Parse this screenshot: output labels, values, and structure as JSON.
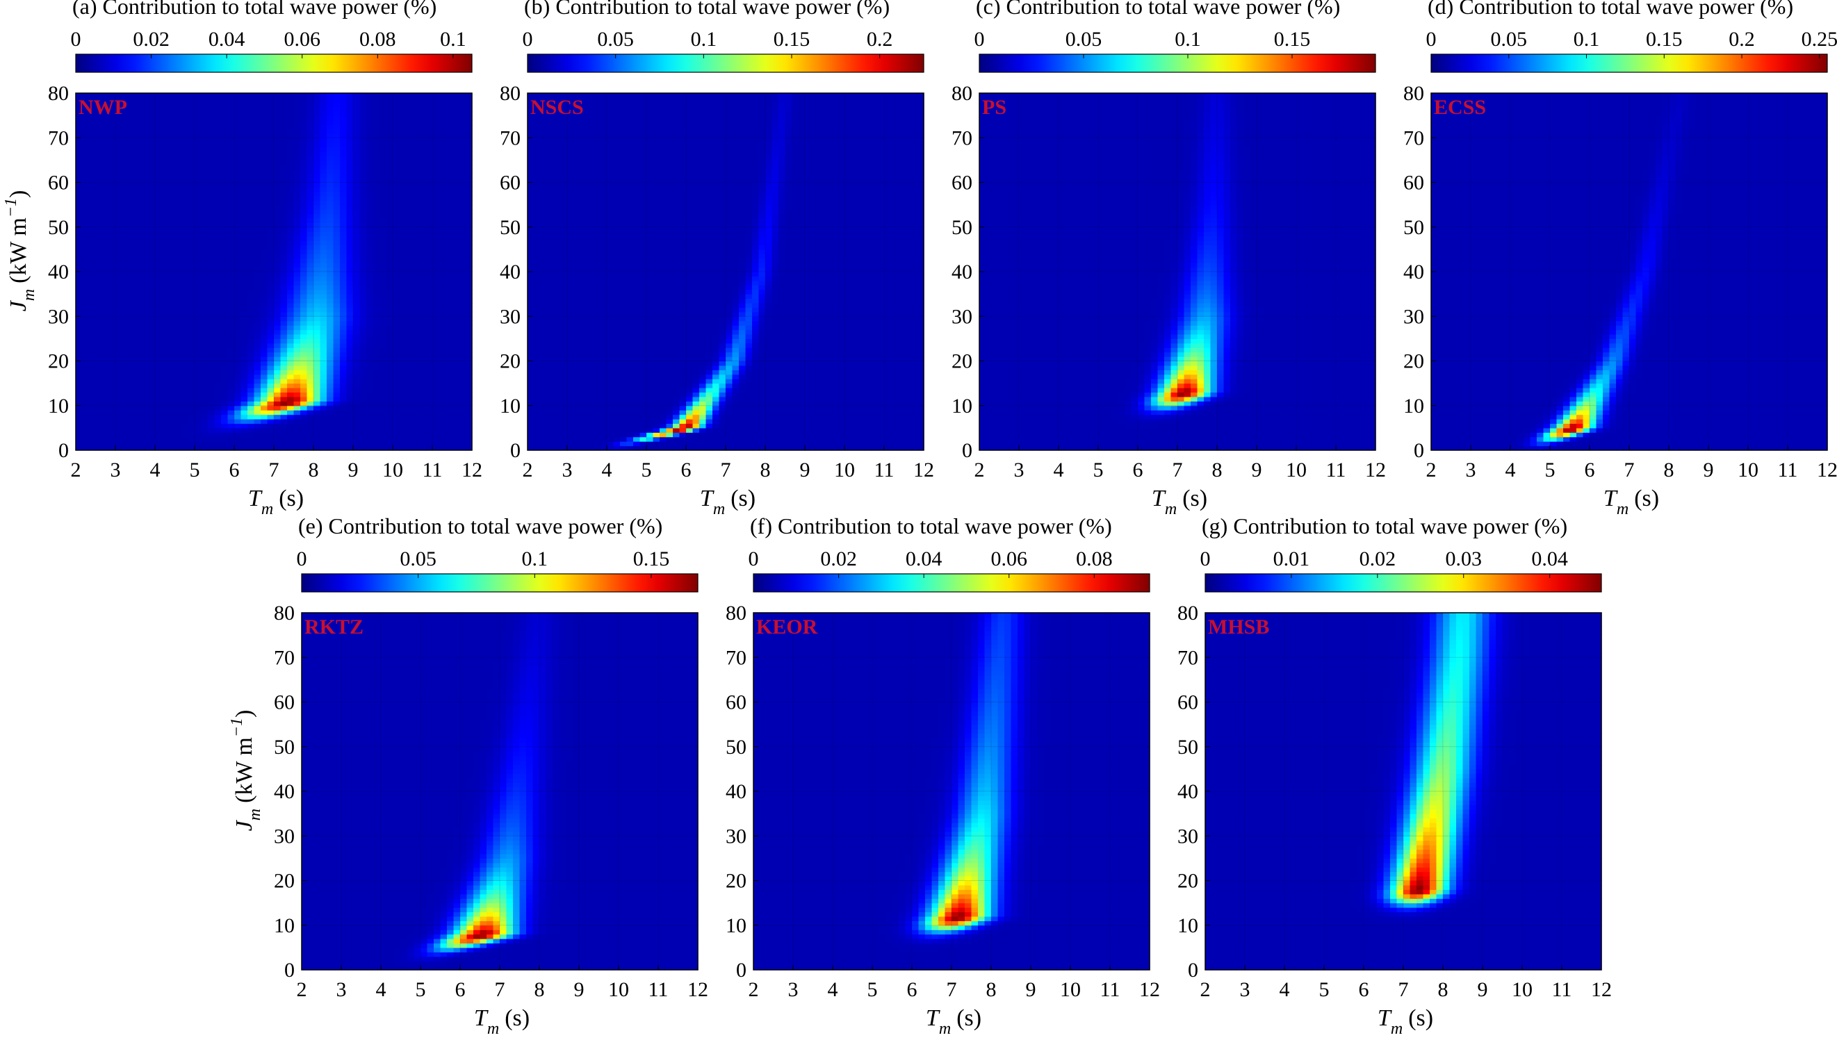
{
  "chart_data": [
    {
      "type": "heatmap",
      "panel": "a",
      "region": "NWP",
      "colorbar_title": "(a) Contribution to total wave power (%)",
      "colorbar_ticks": [
        "0",
        "0.02",
        "0.04",
        "0.06",
        "0.08",
        "0.1"
      ],
      "colorbar_tick_values": [
        0,
        0.02,
        0.04,
        0.06,
        0.08,
        0.1
      ],
      "colorbar_range": [
        0,
        0.105
      ],
      "xlabel": "T",
      "xlabel_sub": "m",
      "xlabel_unit": "(s)",
      "ylabel": "J",
      "ylabel_sub": "m",
      "ylabel_unit": "(kW m",
      "ylabel_sup": "−1",
      "ylabel_close": ")",
      "xlim": [
        2,
        12
      ],
      "ylim": [
        0,
        80
      ],
      "xticks": [
        "2",
        "3",
        "4",
        "5",
        "6",
        "7",
        "8",
        "9",
        "10",
        "11",
        "12"
      ],
      "yticks": [
        "0",
        "10",
        "20",
        "30",
        "40",
        "50",
        "60",
        "70",
        "80"
      ],
      "peak": {
        "T": 7.5,
        "J": 11,
        "value": 0.1
      },
      "ridge": [
        {
          "J": 2,
          "T": 5.2
        },
        {
          "J": 11,
          "T": 7.4
        },
        {
          "J": 30,
          "T": 8.1
        },
        {
          "J": 55,
          "T": 8.4
        },
        {
          "J": 80,
          "T": 8.6
        }
      ],
      "spread": [
        0.55,
        0.75,
        0.8,
        0.6,
        0.5
      ],
      "jscale": [
        3.5,
        10,
        45
      ],
      "colormap": "jet",
      "show_ylabel": true
    },
    {
      "type": "heatmap",
      "panel": "b",
      "region": "NSCS",
      "colorbar_title": "(b) Contribution to total wave power (%)",
      "colorbar_ticks": [
        "0",
        "0.05",
        "0.1",
        "0.15",
        "0.2"
      ],
      "colorbar_tick_values": [
        0,
        0.05,
        0.1,
        0.15,
        0.2
      ],
      "colorbar_range": [
        0,
        0.225
      ],
      "xlabel": "T",
      "xlabel_sub": "m",
      "xlabel_unit": "(s)",
      "ylabel": "J",
      "ylabel_sub": "m",
      "ylabel_unit": "(kW m",
      "ylabel_sup": "−1",
      "ylabel_close": ")",
      "xlim": [
        2,
        12
      ],
      "ylim": [
        0,
        80
      ],
      "xticks": [
        "2",
        "3",
        "4",
        "5",
        "6",
        "7",
        "8",
        "9",
        "10",
        "11",
        "12"
      ],
      "yticks": [
        "0",
        "10",
        "20",
        "30",
        "40",
        "50",
        "60",
        "70",
        "80"
      ],
      "peak": {
        "T": 6.0,
        "J": 5,
        "value": 0.22
      },
      "ridge": [
        {
          "J": 1,
          "T": 4.3
        },
        {
          "J": 5,
          "T": 6.0
        },
        {
          "J": 20,
          "T": 7.2
        },
        {
          "J": 40,
          "T": 7.9
        },
        {
          "J": 80,
          "T": 8.5
        }
      ],
      "spread": [
        0.3,
        0.35,
        0.3,
        0.25,
        0.2
      ],
      "jscale": [
        2.5,
        6,
        30
      ],
      "colormap": "jet",
      "show_ylabel": false
    },
    {
      "type": "heatmap",
      "panel": "c",
      "region": "PS",
      "colorbar_title": "(c) Contribution to total wave power (%)",
      "colorbar_ticks": [
        "0",
        "0.05",
        "0.1",
        "0.15"
      ],
      "colorbar_tick_values": [
        0,
        0.05,
        0.1,
        0.15
      ],
      "colorbar_range": [
        0,
        0.19
      ],
      "xlabel": "T",
      "xlabel_sub": "m",
      "xlabel_unit": "(s)",
      "ylabel": "J",
      "ylabel_sub": "m",
      "ylabel_unit": "(kW m",
      "ylabel_sup": "−1",
      "ylabel_close": ")",
      "xlim": [
        2,
        12
      ],
      "ylim": [
        0,
        80
      ],
      "xticks": [
        "2",
        "3",
        "4",
        "5",
        "6",
        "7",
        "8",
        "9",
        "10",
        "11",
        "12"
      ],
      "yticks": [
        "0",
        "10",
        "20",
        "30",
        "40",
        "50",
        "60",
        "70",
        "80"
      ],
      "peak": {
        "T": 7.3,
        "J": 13,
        "value": 0.18
      },
      "ridge": [
        {
          "J": 2,
          "T": 5.6
        },
        {
          "J": 13,
          "T": 7.2
        },
        {
          "J": 30,
          "T": 7.7
        },
        {
          "J": 55,
          "T": 7.9
        },
        {
          "J": 80,
          "T": 8.0
        }
      ],
      "spread": [
        0.45,
        0.6,
        0.6,
        0.45,
        0.35
      ],
      "jscale": [
        3,
        9,
        30
      ],
      "colormap": "jet",
      "show_ylabel": false
    },
    {
      "type": "heatmap",
      "panel": "d",
      "region": "ECSS",
      "colorbar_title": "(d) Contribution to total wave power (%)",
      "colorbar_ticks": [
        "0",
        "0.05",
        "0.1",
        "0.15",
        "0.2",
        "0.25"
      ],
      "colorbar_tick_values": [
        0,
        0.05,
        0.1,
        0.15,
        0.2,
        0.25
      ],
      "colorbar_range": [
        0,
        0.255
      ],
      "xlabel": "T",
      "xlabel_sub": "m",
      "xlabel_unit": "(s)",
      "ylabel": "J",
      "ylabel_sub": "m",
      "ylabel_unit": "(kW m",
      "ylabel_sup": "−1",
      "ylabel_close": ")",
      "xlim": [
        2,
        12
      ],
      "ylim": [
        0,
        80
      ],
      "xticks": [
        "2",
        "3",
        "4",
        "5",
        "6",
        "7",
        "8",
        "9",
        "10",
        "11",
        "12"
      ],
      "yticks": [
        "0",
        "10",
        "20",
        "30",
        "40",
        "50",
        "60",
        "70",
        "80"
      ],
      "peak": {
        "T": 5.6,
        "J": 5,
        "value": 0.25
      },
      "ridge": [
        {
          "J": 1,
          "T": 4.7
        },
        {
          "J": 5,
          "T": 5.6
        },
        {
          "J": 20,
          "T": 6.6
        },
        {
          "J": 40,
          "T": 7.4
        },
        {
          "J": 80,
          "T": 8.3
        }
      ],
      "spread": [
        0.35,
        0.45,
        0.35,
        0.3,
        0.25
      ],
      "jscale": [
        2.5,
        6,
        25
      ],
      "colormap": "jet",
      "show_ylabel": false
    },
    {
      "type": "heatmap",
      "panel": "e",
      "region": "RKTZ",
      "colorbar_title": "(e) Contribution to total wave power (%)",
      "colorbar_ticks": [
        "0",
        "0.05",
        "0.1",
        "0.15"
      ],
      "colorbar_tick_values": [
        0,
        0.05,
        0.1,
        0.15
      ],
      "colorbar_range": [
        0,
        0.17
      ],
      "xlabel": "T",
      "xlabel_sub": "m",
      "xlabel_unit": "(s)",
      "ylabel": "J",
      "ylabel_sub": "m",
      "ylabel_unit": "(kW m",
      "ylabel_sup": "−1",
      "ylabel_close": ")",
      "xlim": [
        2,
        12
      ],
      "ylim": [
        0,
        80
      ],
      "xticks": [
        "2",
        "3",
        "4",
        "5",
        "6",
        "7",
        "8",
        "9",
        "10",
        "11",
        "12"
      ],
      "yticks": [
        "0",
        "10",
        "20",
        "30",
        "40",
        "50",
        "60",
        "70",
        "80"
      ],
      "peak": {
        "T": 6.6,
        "J": 8,
        "value": 0.16
      },
      "ridge": [
        {
          "J": 2,
          "T": 5.0
        },
        {
          "J": 8,
          "T": 6.6
        },
        {
          "J": 25,
          "T": 7.2
        },
        {
          "J": 50,
          "T": 7.6
        },
        {
          "J": 80,
          "T": 8.0
        }
      ],
      "spread": [
        0.45,
        0.7,
        0.65,
        0.55,
        0.45
      ],
      "jscale": [
        3,
        8,
        30
      ],
      "colormap": "jet",
      "show_ylabel": true
    },
    {
      "type": "heatmap",
      "panel": "f",
      "region": "KEOR",
      "colorbar_title": "(f) Contribution to total wave power (%)",
      "colorbar_ticks": [
        "0",
        "0.02",
        "0.04",
        "0.06",
        "0.08"
      ],
      "colorbar_tick_values": [
        0,
        0.02,
        0.04,
        0.06,
        0.08
      ],
      "colorbar_range": [
        0,
        0.093
      ],
      "xlabel": "T",
      "xlabel_sub": "m",
      "xlabel_unit": "(s)",
      "ylabel": "J",
      "ylabel_sub": "m",
      "ylabel_unit": "(kW m",
      "ylabel_sup": "−1",
      "ylabel_close": ")",
      "xlim": [
        2,
        12
      ],
      "ylim": [
        0,
        80
      ],
      "xticks": [
        "2",
        "3",
        "4",
        "5",
        "6",
        "7",
        "8",
        "9",
        "10",
        "11",
        "12"
      ],
      "yticks": [
        "0",
        "10",
        "20",
        "30",
        "40",
        "50",
        "60",
        "70",
        "80"
      ],
      "peak": {
        "T": 7.2,
        "J": 12,
        "value": 0.09
      },
      "ridge": [
        {
          "J": 2,
          "T": 5.8
        },
        {
          "J": 12,
          "T": 7.2
        },
        {
          "J": 35,
          "T": 7.8
        },
        {
          "J": 60,
          "T": 8.1
        },
        {
          "J": 80,
          "T": 8.3
        }
      ],
      "spread": [
        0.5,
        0.7,
        0.65,
        0.6,
        0.55
      ],
      "jscale": [
        3,
        12,
        70
      ],
      "colormap": "jet",
      "show_ylabel": false
    },
    {
      "type": "heatmap",
      "panel": "g",
      "region": "MHSB",
      "colorbar_title": "(g) Contribution to total wave power (%)",
      "colorbar_ticks": [
        "0",
        "0.01",
        "0.02",
        "0.03",
        "0.04"
      ],
      "colorbar_tick_values": [
        0,
        0.01,
        0.02,
        0.03,
        0.04
      ],
      "colorbar_range": [
        0,
        0.046
      ],
      "xlabel": "T",
      "xlabel_sub": "m",
      "xlabel_unit": "(s)",
      "ylabel": "J",
      "ylabel_sub": "m",
      "ylabel_unit": "(kW m",
      "ylabel_sup": "−1",
      "ylabel_close": ")",
      "xlim": [
        2,
        12
      ],
      "ylim": [
        0,
        80
      ],
      "xticks": [
        "2",
        "3",
        "4",
        "5",
        "6",
        "7",
        "8",
        "9",
        "10",
        "11",
        "12"
      ],
      "yticks": [
        "0",
        "10",
        "20",
        "30",
        "40",
        "50",
        "60",
        "70",
        "80"
      ],
      "peak": {
        "T": 7.5,
        "J": 18,
        "value": 0.045
      },
      "ridge": [
        {
          "J": 3,
          "T": 6.4
        },
        {
          "J": 18,
          "T": 7.4
        },
        {
          "J": 45,
          "T": 8.0
        },
        {
          "J": 70,
          "T": 8.4
        },
        {
          "J": 80,
          "T": 8.5
        }
      ],
      "spread": [
        0.5,
        0.65,
        0.7,
        0.7,
        0.7
      ],
      "jscale": [
        3,
        20,
        400
      ],
      "colormap": "jet",
      "show_ylabel": false
    }
  ]
}
